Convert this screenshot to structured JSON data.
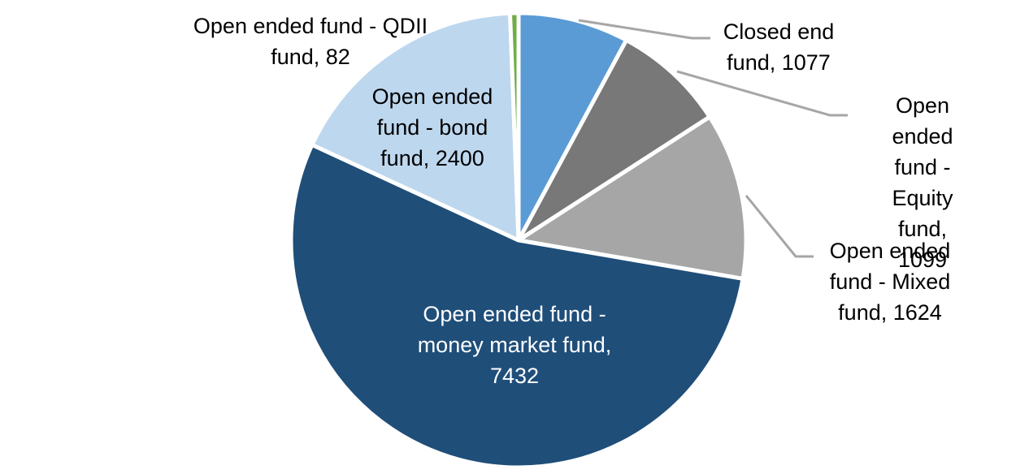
{
  "figure": {
    "background": "#FFFFFF",
    "title": ""
  },
  "chart_data": {
    "type": "pie",
    "title": "",
    "total": 13714,
    "start_angle_deg": 0,
    "direction": "clockwise",
    "legend_position": "none",
    "separator_color": "#FFFFFF",
    "leader_line_color": "#A6A6A6",
    "slices": [
      {
        "name": "closed-end-fund",
        "label": "Closed end fund",
        "value": 1077,
        "color": "#5B9BD5",
        "callout": "Closed end\nfund, 1077",
        "callout_color": "#000000"
      },
      {
        "name": "open-ended-fund-equity-fund",
        "label": "Open ended fund - Equity fund",
        "value": 1099,
        "color": "#787878",
        "callout": "Open ended\nfund - Equity\nfund, 1099",
        "callout_color": "#000000"
      },
      {
        "name": "open-ended-fund-mixed-fund",
        "label": "Open ended fund - Mixed fund",
        "value": 1624,
        "color": "#A6A6A6",
        "callout": "Open ended\nfund - Mixed\nfund, 1624",
        "callout_color": "#000000"
      },
      {
        "name": "open-ended-fund-money-market-fund",
        "label": "Open ended fund - money market fund",
        "value": 7432,
        "color": "#1F4E79",
        "callout": "Open ended fund -\nmoney market fund,\n7432",
        "callout_color": "#FFFFFF"
      },
      {
        "name": "open-ended-fund-bond-fund",
        "label": "Open ended fund - bond fund",
        "value": 2400,
        "color": "#BDD7EE",
        "callout": "Open ended\nfund - bond\nfund, 2400",
        "callout_color": "#000000"
      },
      {
        "name": "open-ended-fund-qdii-fund",
        "label": "Open ended fund - QDII fund",
        "value": 82,
        "color": "#70AD47",
        "callout": "Open ended fund - QDII\nfund, 82",
        "callout_color": "#000000"
      }
    ]
  }
}
